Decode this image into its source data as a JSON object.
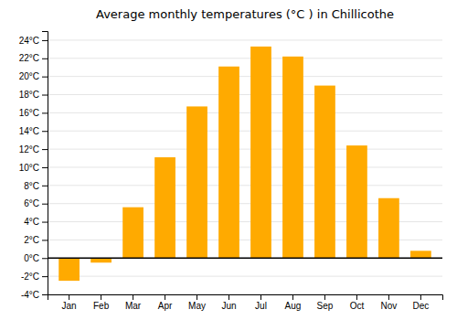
{
  "chart_data": {
    "type": "bar",
    "title": "Average monthly temperatures (°C ) in Chillicothe",
    "categories": [
      "Jan",
      "Feb",
      "Mar",
      "Apr",
      "May",
      "Jun",
      "Jul",
      "Aug",
      "Sep",
      "Oct",
      "Nov",
      "Dec"
    ],
    "values": [
      -2.5,
      -0.5,
      5.6,
      11.1,
      16.7,
      21.1,
      23.3,
      22.2,
      19.0,
      12.4,
      6.6,
      0.8
    ],
    "color": "#FFAA00",
    "ylim": [
      -4,
      25
    ],
    "yticks": [
      {
        "value": -4,
        "label": "-4°C"
      },
      {
        "value": -2,
        "label": "-2°C"
      },
      {
        "value": 0,
        "label": "0°C"
      },
      {
        "value": 2,
        "label": "2°C"
      },
      {
        "value": 4,
        "label": "4°C"
      },
      {
        "value": 6,
        "label": "6°C"
      },
      {
        "value": 8,
        "label": "8°C"
      },
      {
        "value": 10,
        "label": "10°C"
      },
      {
        "value": 12,
        "label": "12°C"
      },
      {
        "value": 14,
        "label": "14°C"
      },
      {
        "value": 16,
        "label": "16°C"
      },
      {
        "value": 18,
        "label": "18°C"
      },
      {
        "value": 20,
        "label": "20°C"
      },
      {
        "value": 22,
        "label": "22°C"
      },
      {
        "value": 24,
        "label": "24°C"
      }
    ],
    "grid": true
  }
}
